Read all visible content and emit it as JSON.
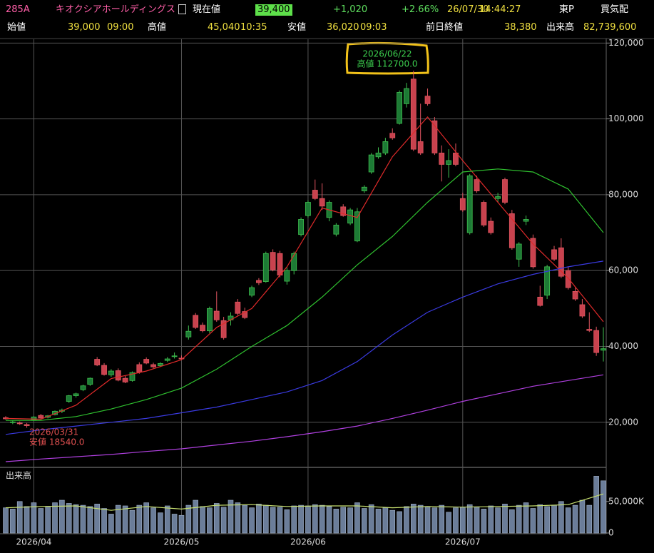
{
  "header": {
    "code": "285A",
    "name": "キオクシアホールディングス",
    "price_label": "現在値",
    "price": "39,400",
    "change": "+1,020",
    "change_pct": "+2.66%",
    "date": "26/07/30",
    "time": "14:44:27",
    "market": "東P",
    "quote": "買気配",
    "fields": [
      {
        "label": "始値",
        "value": "39,000",
        "time": "09:00"
      },
      {
        "label": "高値",
        "value": "45,040",
        "time": "10:35"
      },
      {
        "label": "安値",
        "value": "36,020",
        "time": "09:03"
      },
      {
        "label": "前日終値",
        "value": "38,380"
      },
      {
        "label": "出来高",
        "value": "82,739,600"
      }
    ]
  },
  "chart_data": [
    {
      "type": "candlestick",
      "categories": [
        null,
        null,
        null,
        null,
        "2026/04",
        null,
        null,
        null,
        null,
        null,
        null,
        null,
        null,
        null,
        null,
        null,
        null,
        null,
        null,
        null,
        null,
        null,
        null,
        null,
        null,
        "2026/05",
        null,
        null,
        null,
        null,
        null,
        null,
        null,
        null,
        null,
        null,
        null,
        null,
        null,
        null,
        null,
        null,
        null,
        "2026/06",
        null,
        null,
        null,
        null,
        null,
        null,
        null,
        null,
        null,
        null,
        null,
        null,
        null,
        null,
        null,
        null,
        null,
        null,
        null,
        null,
        null,
        "2026/07",
        null,
        null,
        null,
        null,
        null,
        null,
        null,
        null,
        null,
        null,
        null,
        null,
        null,
        null,
        null,
        null,
        null,
        null,
        null,
        null
      ],
      "open": [
        21200,
        19900,
        19800,
        19400,
        20700,
        21800,
        21300,
        22000,
        22900,
        25500,
        27000,
        28600,
        30000,
        36600,
        35000,
        32500,
        33600,
        31600,
        31000,
        35200,
        36600,
        35200,
        34900,
        36300,
        37300,
        36900,
        42500,
        48200,
        45600,
        44100,
        49300,
        46800,
        47000,
        51700,
        49200,
        53500,
        57400,
        57100,
        64800,
        64500,
        57200,
        60000,
        69500,
        74500,
        81200,
        79000,
        74000,
        69600,
        76800,
        72500,
        67800,
        81000,
        86000,
        90000,
        91000,
        96200,
        98800,
        104000,
        110500,
        94000,
        106000,
        99500,
        91000,
        88000,
        91000,
        79000,
        70000,
        84000,
        78000,
        73000,
        79000,
        84000,
        75000,
        63000,
        73000,
        68500,
        53000,
        53500,
        65500,
        66000,
        60000,
        54500,
        51000,
        44500,
        44200,
        39000
      ],
      "high": [
        21600,
        20400,
        20200,
        19800,
        21600,
        22200,
        21900,
        23100,
        23600,
        27200,
        27800,
        29900,
        31800,
        37200,
        35600,
        34000,
        34200,
        32200,
        33400,
        35800,
        37100,
        35700,
        35800,
        37200,
        38400,
        37600,
        45500,
        48800,
        46300,
        50500,
        54500,
        47800,
        49000,
        52500,
        50200,
        56000,
        58000,
        65000,
        65600,
        65200,
        60800,
        65000,
        74000,
        78500,
        84000,
        83000,
        78500,
        72500,
        77500,
        76500,
        76500,
        82500,
        91000,
        92500,
        95000,
        97500,
        107500,
        109500,
        112700,
        104000,
        108000,
        100500,
        93000,
        92000,
        93500,
        80500,
        85500,
        85000,
        78500,
        74000,
        80500,
        84500,
        76000,
        67500,
        74500,
        69500,
        56000,
        61500,
        66500,
        68500,
        61000,
        55500,
        52500,
        49000,
        45200,
        45040
      ],
      "low": [
        20700,
        19500,
        19300,
        18540,
        20400,
        20800,
        21000,
        21800,
        22400,
        25100,
        26500,
        28200,
        29600,
        34800,
        32300,
        32000,
        30800,
        30300,
        30700,
        32800,
        35300,
        34300,
        34600,
        35900,
        36800,
        36400,
        41800,
        44600,
        43700,
        43500,
        46500,
        41800,
        45500,
        48200,
        47200,
        53000,
        56200,
        56800,
        59800,
        58200,
        56300,
        59000,
        69000,
        74000,
        78600,
        76000,
        73000,
        69000,
        74200,
        72000,
        67500,
        80500,
        85500,
        89500,
        90500,
        94500,
        98500,
        103000,
        91500,
        90500,
        103500,
        90500,
        83500,
        84500,
        87500,
        75500,
        69500,
        80500,
        71500,
        69500,
        78000,
        77500,
        65500,
        61000,
        72000,
        60500,
        50500,
        52500,
        62500,
        58000,
        55000,
        52000,
        47500,
        43800,
        37500,
        36020
      ],
      "close": [
        20900,
        20100,
        19600,
        19100,
        21400,
        21100,
        21700,
        22900,
        23200,
        27000,
        27500,
        29600,
        31600,
        35100,
        32600,
        33500,
        31100,
        30600,
        33100,
        33200,
        35600,
        34600,
        35500,
        36700,
        37500,
        36700,
        44000,
        45000,
        44100,
        50000,
        47000,
        42300,
        48000,
        48700,
        47600,
        55500,
        56800,
        64500,
        60200,
        58800,
        60000,
        64500,
        73500,
        78000,
        79000,
        77000,
        78000,
        72000,
        74500,
        76000,
        75500,
        82000,
        90500,
        91000,
        94000,
        95000,
        107000,
        108000,
        92000,
        91000,
        104000,
        91000,
        88000,
        89000,
        88000,
        76000,
        85000,
        81000,
        72000,
        70000,
        79500,
        78000,
        66000,
        67000,
        73500,
        61000,
        50800,
        61000,
        63000,
        58500,
        55500,
        52500,
        48000,
        44200,
        38380,
        39400
      ],
      "up_color": "#1d7a35",
      "down_color": "#c8424e",
      "ylim": [
        8100,
        121000
      ],
      "yticks": [
        {
          "value": 20000,
          "label": "20,000"
        },
        {
          "value": 40000,
          "label": "40,000"
        },
        {
          "value": 60000,
          "label": "60,000"
        },
        {
          "value": 80000,
          "label": "80,000"
        },
        {
          "value": 100000,
          "label": "100,000"
        },
        {
          "value": 120000,
          "label": "120,000"
        }
      ],
      "grid": true,
      "series": [
        {
          "type": "line",
          "color": "#e02a2a",
          "x": [
            0,
            5,
            10,
            15,
            20,
            25,
            30,
            35,
            40,
            45,
            50,
            55,
            60,
            65,
            70,
            75,
            80,
            85
          ],
          "values": [
            21000,
            20800,
            24500,
            31500,
            33500,
            36500,
            45000,
            50000,
            61000,
            76500,
            74000,
            90000,
            100500,
            89000,
            78000,
            67000,
            58000,
            46500
          ]
        },
        {
          "type": "line",
          "color": "#2fc02f",
          "x": [
            0,
            5,
            10,
            15,
            20,
            25,
            30,
            35,
            40,
            45,
            50,
            55,
            60,
            65,
            70,
            75,
            80,
            85
          ],
          "values": [
            20500,
            20500,
            21500,
            23500,
            26000,
            29000,
            34000,
            40000,
            45500,
            53000,
            61500,
            69000,
            78000,
            86000,
            86800,
            86000,
            81500,
            70000
          ]
        },
        {
          "type": "line",
          "color": "#3a3ae0",
          "x": [
            0,
            5,
            10,
            15,
            20,
            25,
            30,
            35,
            40,
            45,
            50,
            55,
            60,
            65,
            70,
            75,
            80,
            85
          ],
          "values": [
            16800,
            18000,
            19000,
            20000,
            21000,
            22500,
            24000,
            26000,
            28000,
            31000,
            36000,
            43000,
            49000,
            53000,
            56500,
            59000,
            61000,
            62500
          ]
        },
        {
          "type": "line",
          "color": "#b040e0",
          "x": [
            0,
            5,
            10,
            15,
            20,
            25,
            30,
            35,
            40,
            45,
            50,
            55,
            60,
            65,
            70,
            75,
            80,
            85
          ],
          "values": [
            9600,
            10300,
            10900,
            11500,
            12300,
            13000,
            14000,
            15000,
            16200,
            17500,
            19000,
            21000,
            23200,
            25500,
            27500,
            29500,
            31000,
            32500
          ]
        }
      ],
      "annotations": [
        {
          "date": "2026/06/22",
          "label": "高値 112700.0",
          "color": "#3ccf4e"
        },
        {
          "date": "2026/03/31",
          "label": "安値 18540.0",
          "color": "#e05050"
        }
      ]
    },
    {
      "type": "bar",
      "label": "出来高",
      "values": [
        40000,
        38000,
        50000,
        42000,
        48000,
        39000,
        41000,
        48000,
        52000,
        47000,
        45000,
        44000,
        42000,
        46000,
        39000,
        30000,
        44000,
        43000,
        36000,
        44000,
        48000,
        40000,
        32000,
        43000,
        30000,
        28000,
        44000,
        52000,
        42000,
        40000,
        47000,
        41000,
        52000,
        48000,
        44000,
        40000,
        46000,
        44000,
        41000,
        41000,
        37000,
        43000,
        44000,
        43000,
        45000,
        44000,
        42000,
        38000,
        41000,
        40000,
        48000,
        39000,
        45000,
        38000,
        40000,
        36000,
        34000,
        42000,
        46000,
        44000,
        42000,
        40000,
        44000,
        33000,
        40000,
        41000,
        45000,
        41000,
        38000,
        43000,
        40000,
        46000,
        37000,
        44000,
        48000,
        39000,
        45000,
        42000,
        44000,
        50000,
        40000,
        44000,
        52000,
        44000,
        90000,
        82740
      ],
      "color": "#6b7d99",
      "ylim": [
        0,
        104000
      ],
      "yticks": [
        0,
        {
          "value": 50000,
          "label": "50,000K"
        }
      ],
      "series": [
        {
          "type": "line",
          "color": "#c8e070",
          "x": [
            0,
            5,
            10,
            15,
            20,
            25,
            30,
            35,
            40,
            45,
            50,
            55,
            60,
            65,
            70,
            75,
            80,
            85
          ],
          "values": [
            40000,
            42000,
            43000,
            36000,
            42000,
            38000,
            44000,
            45000,
            42000,
            43000,
            43000,
            40000,
            42000,
            41000,
            42000,
            43000,
            45000,
            62000
          ]
        }
      ]
    }
  ]
}
